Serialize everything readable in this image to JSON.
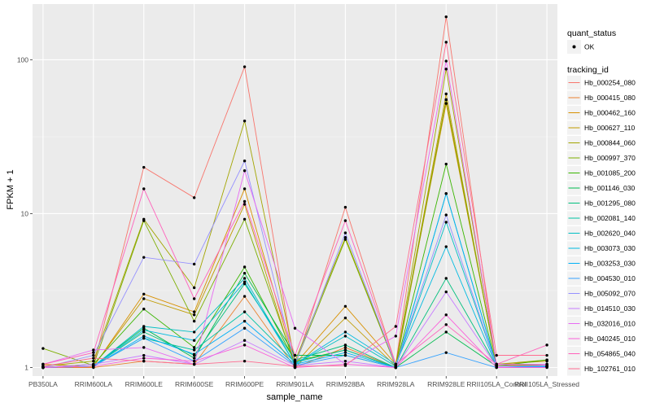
{
  "chart_data": {
    "type": "line",
    "xlabel": "sample_name",
    "ylabel": "FPKM + 1",
    "y_scale": "log10",
    "ylim": [
      0.88,
      230
    ],
    "y_ticks": [
      1,
      10,
      100
    ],
    "y_tick_labels": [
      "1",
      "10",
      "100"
    ],
    "grid": true,
    "legend_position": "right",
    "categories": [
      "PB350LA",
      "RRIM600LA",
      "RRIM600LE",
      "RRIM600SE",
      "RRIM600PE",
      "RRIM901LA",
      "RRIM928BA",
      "RRIM928LA",
      "RRIM928LE",
      "RRII105LA_Control",
      "RRII105LA_Stressed"
    ],
    "quant_legend": {
      "title": "quant_status",
      "entries": [
        "OK"
      ]
    },
    "tracking_legend_title": "tracking_id",
    "series": [
      {
        "name": "Hb_000254_080",
        "color": "#F8766D",
        "values": [
          1.01,
          1.02,
          20,
          12.7,
          90,
          1.02,
          11,
          1.05,
          190,
          1.02,
          1.01
        ]
      },
      {
        "name": "Hb_000415_080",
        "color": "#EA8331",
        "values": [
          1.0,
          1.0,
          1.1,
          1.05,
          2.9,
          1.0,
          1.35,
          1.0,
          55,
          1.03,
          1.05
        ]
      },
      {
        "name": "Hb_000462_160",
        "color": "#D89000",
        "values": [
          1.05,
          1.01,
          3.0,
          2.3,
          14.5,
          1.05,
          2.5,
          1.05,
          52,
          1.05,
          1.1
        ]
      },
      {
        "name": "Hb_000627_110",
        "color": "#C09B00",
        "values": [
          1.0,
          1.02,
          2.8,
          2.2,
          11.5,
          1.0,
          2.1,
          1.02,
          60,
          1.02,
          1.05
        ]
      },
      {
        "name": "Hb_000844_060",
        "color": "#A3A500",
        "values": [
          1.02,
          1.1,
          9.2,
          3.3,
          40,
          1.1,
          7.0,
          1.03,
          87,
          1.05,
          1.12
        ]
      },
      {
        "name": "Hb_000997_370",
        "color": "#7CAE00",
        "values": [
          1.33,
          1.03,
          9.0,
          2.0,
          9.2,
          1.05,
          6.8,
          1.02,
          55,
          1.05,
          1.03
        ]
      },
      {
        "name": "Hb_001085_200",
        "color": "#39B600",
        "values": [
          1.0,
          1.05,
          2.4,
          1.35,
          4.5,
          1.1,
          1.3,
          1.0,
          21,
          1.02,
          1.12
        ]
      },
      {
        "name": "Hb_001146_030",
        "color": "#00BB4E",
        "values": [
          1.0,
          1.02,
          1.8,
          1.15,
          4.1,
          1.2,
          1.2,
          1.0,
          1.7,
          1.02,
          1.01
        ]
      },
      {
        "name": "Hb_001295_080",
        "color": "#00BF7D",
        "values": [
          1.0,
          1.02,
          1.7,
          1.2,
          3.5,
          1.12,
          1.4,
          1.0,
          3.8,
          1.02,
          1.01
        ]
      },
      {
        "name": "Hb_002081_140",
        "color": "#00C1A3",
        "values": [
          1.0,
          1.02,
          1.55,
          1.3,
          2.3,
          1.08,
          1.3,
          1.0,
          13.5,
          1.02,
          1.02
        ]
      },
      {
        "name": "Hb_002620_040",
        "color": "#00BFC4",
        "values": [
          1.0,
          1.02,
          1.85,
          1.7,
          3.8,
          1.05,
          1.6,
          1.02,
          8.8,
          1.02,
          1.02
        ]
      },
      {
        "name": "Hb_003073_030",
        "color": "#00BAE0",
        "values": [
          1.0,
          1.02,
          1.75,
          1.5,
          3.6,
          1.05,
          1.7,
          1.05,
          6.1,
          1.02,
          1.02
        ]
      },
      {
        "name": "Hb_003253_030",
        "color": "#00B0F6",
        "values": [
          1.0,
          1.02,
          1.6,
          1.22,
          2.0,
          1.05,
          1.25,
          1.0,
          13.5,
          1.02,
          1.02
        ]
      },
      {
        "name": "Hb_004530_010",
        "color": "#35A2FF",
        "values": [
          1.0,
          1.02,
          1.55,
          1.1,
          1.8,
          1.03,
          1.2,
          1.0,
          1.25,
          1.0,
          1.01
        ]
      },
      {
        "name": "Hb_005092_070",
        "color": "#9590FF",
        "values": [
          1.0,
          1.2,
          5.2,
          4.7,
          22,
          1.05,
          7.5,
          1.03,
          9.8,
          1.02,
          1.03
        ]
      },
      {
        "name": "Hb_014510_030",
        "color": "#C77CFF",
        "values": [
          1.0,
          1.05,
          1.2,
          1.05,
          1.5,
          1.03,
          1.1,
          1.0,
          3.1,
          1.02,
          1.03
        ]
      },
      {
        "name": "Hb_032016_010",
        "color": "#E76BF3",
        "values": [
          1.05,
          1.3,
          1.35,
          1.05,
          19,
          1.8,
          1.05,
          1.6,
          98,
          1.05,
          1.05
        ]
      },
      {
        "name": "Hb_040245_010",
        "color": "#FA62DB",
        "values": [
          1.0,
          1.02,
          1.15,
          1.1,
          1.4,
          1.0,
          1.05,
          1.0,
          2.2,
          1.0,
          1.0
        ]
      },
      {
        "name": "Hb_054865_040",
        "color": "#FF62BC",
        "values": [
          1.05,
          1.25,
          14.5,
          2.8,
          12,
          1.2,
          9.0,
          1.05,
          1.9,
          1.05,
          1.4
        ]
      },
      {
        "name": "Hb_102761_010",
        "color": "#FF6C91",
        "values": [
          1.02,
          1.15,
          1.1,
          1.05,
          1.1,
          1.02,
          1.03,
          1.85,
          130,
          1.2,
          1.2
        ]
      }
    ]
  }
}
